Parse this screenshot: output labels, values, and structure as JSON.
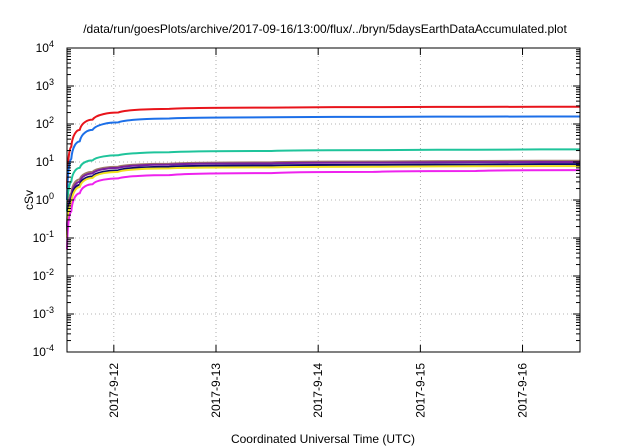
{
  "chart_data": {
    "type": "line",
    "title": "/data/run/goesPlots/archive/2017-09-16/13:00/flux/../bryn/5daysEarthDataAccumulated.plot",
    "xlabel": "Coordinated Universal Time (UTC)",
    "ylabel": "cSv",
    "x_scale": "time",
    "y_scale": "log",
    "xlim": [
      "2017-09-11T13:00",
      "2017-09-16T13:30"
    ],
    "ylim": [
      0.0001,
      10000
    ],
    "grid": true,
    "legend": "none",
    "x_ticks": [
      "2017-9-12",
      "2017-9-13",
      "2017-9-14",
      "2017-9-15",
      "2017-9-16"
    ],
    "y_ticks": [
      {
        "value": 0.0001,
        "label": "10",
        "exp": "-4"
      },
      {
        "value": 0.001,
        "label": "10",
        "exp": "-3"
      },
      {
        "value": 0.01,
        "label": "10",
        "exp": "-2"
      },
      {
        "value": 0.1,
        "label": "10",
        "exp": "-1"
      },
      {
        "value": 1,
        "label": "10",
        "exp": "0"
      },
      {
        "value": 10,
        "label": "10",
        "exp": "1"
      },
      {
        "value": 100,
        "label": "10",
        "exp": "2"
      },
      {
        "value": 1000,
        "label": "10",
        "exp": "3"
      },
      {
        "value": 10000,
        "label": "10",
        "exp": "4"
      }
    ],
    "x": [
      "2017-09-11T13:00",
      "2017-09-11T14:00",
      "2017-09-11T16:00",
      "2017-09-11T19:00",
      "2017-09-12T01:00",
      "2017-09-12T13:00",
      "2017-09-13T13:00",
      "2017-09-14T13:00",
      "2017-09-15T13:00",
      "2017-09-16T13:30"
    ],
    "series": [
      {
        "color": "#e8141b",
        "values": [
          2,
          25,
          70,
          130,
          200,
          250,
          270,
          278,
          282,
          285
        ]
      },
      {
        "color": "#1c6fe8",
        "values": [
          1,
          12,
          35,
          70,
          110,
          140,
          150,
          154,
          156,
          158
        ]
      },
      {
        "color": "#1fc49b",
        "values": [
          0.5,
          3,
          7,
          11,
          15,
          18,
          19.5,
          20.5,
          21,
          21.5
        ]
      },
      {
        "color": "#a07a6a",
        "values": [
          0.2,
          1.5,
          3.5,
          5.5,
          7.5,
          9,
          9.8,
          10.3,
          10.6,
          10.8
        ]
      },
      {
        "color": "#7a1f9e",
        "values": [
          0.15,
          1.2,
          3,
          5,
          7,
          8.5,
          9.2,
          9.6,
          9.9,
          10
        ]
      },
      {
        "color": "#0a0a6e",
        "values": [
          0.12,
          1,
          2.5,
          4.2,
          6,
          7.5,
          8.1,
          8.4,
          8.6,
          8.8
        ]
      },
      {
        "color": "#f0e020",
        "values": [
          0.1,
          0.8,
          2.2,
          3.8,
          5.5,
          6.8,
          7.2,
          7.5,
          7.7,
          7.8
        ]
      },
      {
        "color": "#ee22ee",
        "values": [
          0.05,
          0.5,
          1.5,
          2.6,
          3.7,
          4.5,
          5.1,
          5.5,
          5.8,
          6.1
        ]
      }
    ]
  }
}
